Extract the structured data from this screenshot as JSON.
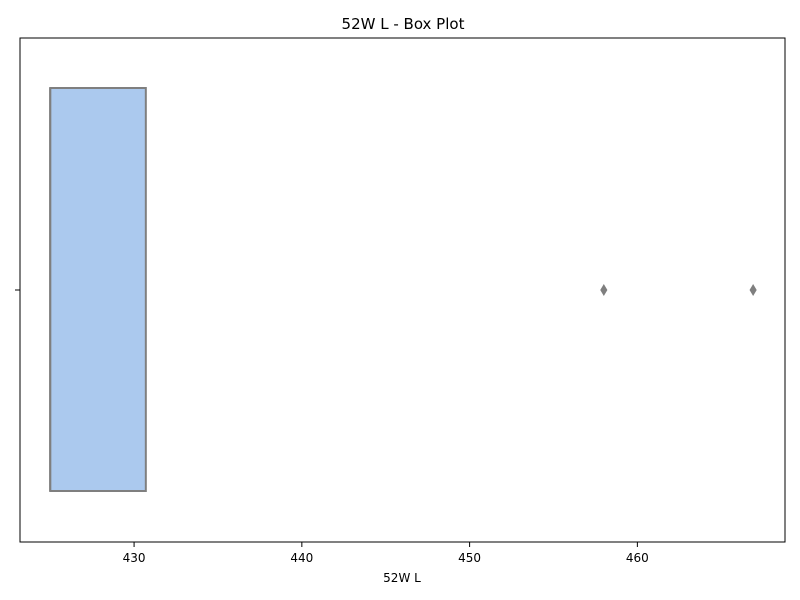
{
  "chart_data": {
    "type": "box",
    "title": "52W L  - Box Plot",
    "xlabel": "52W L",
    "ylabel": "",
    "xlim": [
      423.2,
      468.8
    ],
    "xticks": [
      430,
      440,
      450,
      460
    ],
    "x_tick_labels": [
      "430",
      "440",
      "450",
      "460"
    ],
    "orientation": "horizontal",
    "grid": false,
    "box": {
      "min": 425,
      "q1": 425,
      "median": 425,
      "q3": 430.7,
      "max": 430.7,
      "outliers": [
        458,
        466.9
      ],
      "fill_color": "#abc9ee",
      "edge_color": "#7f7f7f"
    }
  }
}
